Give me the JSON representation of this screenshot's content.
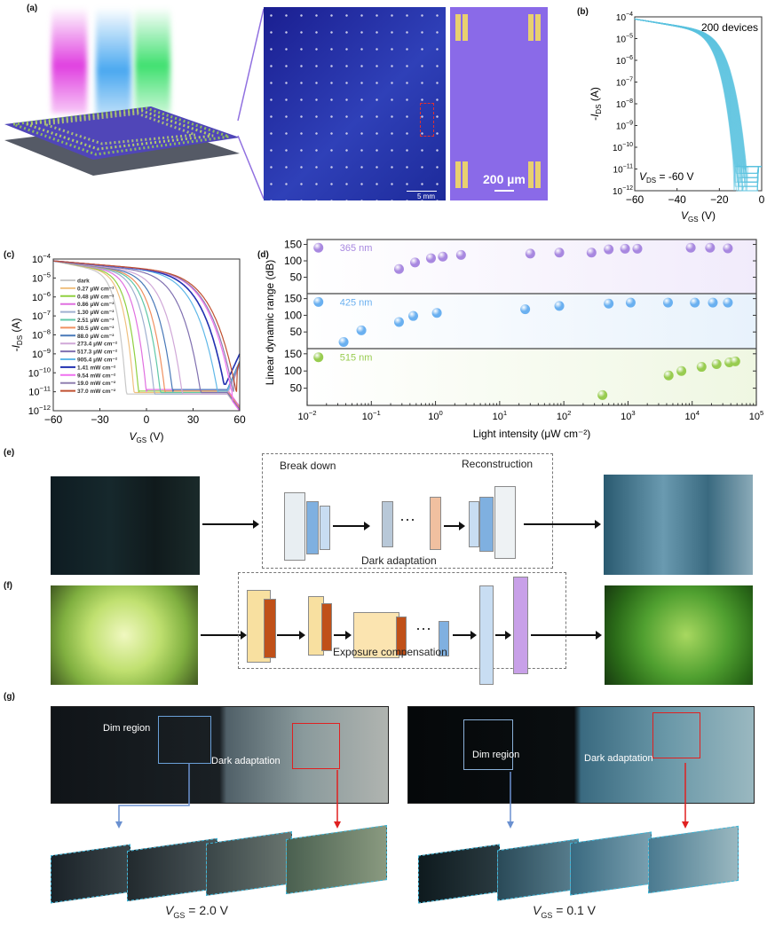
{
  "panels": {
    "a": {
      "label": "(a)",
      "scale_bar_wide": "5 mm",
      "scale_bar_zoom": "200 µm"
    },
    "b": {
      "label": "(b)"
    },
    "c": {
      "label": "(c)"
    },
    "d": {
      "label": "(d)"
    },
    "e": {
      "label": "(e)",
      "stage1": "Break down",
      "stage2": "Reconstruction",
      "stage3": "Dark adaptation",
      "ellipsis": "···"
    },
    "f": {
      "label": "(f)",
      "stage": "Exposure compensation",
      "ellipsis": "···"
    },
    "g": {
      "label": "(g)",
      "left": {
        "dim": "Dim region",
        "adapt": "Dark adaptation",
        "vgs_label": "V",
        "vgs_sub": "GS",
        "vgs_value": " = 2.0 V"
      },
      "right": {
        "dim": "Dim region",
        "adapt": "Dark adaptation",
        "vgs_label": "V",
        "vgs_sub": "GS",
        "vgs_value": " = 0.1 V"
      }
    }
  },
  "colors": {
    "beam1": "#e040e0",
    "beam2": "#4aa8f0",
    "beam3": "#40e070",
    "wafer": "#1f2a8a",
    "zoom": "#8a6ae8",
    "b_curve": "#5bc3e0"
  },
  "chart_data": [
    {
      "id": "b",
      "type": "line",
      "title": "",
      "annotation": "200 devices",
      "condition": {
        "label": "V",
        "sub": "DS",
        "value": " = -60 V"
      },
      "xlabel": {
        "main": "V",
        "sub": "GS",
        "unit": " (V)"
      },
      "ylabel": {
        "pre": "-",
        "main": "I",
        "sub": "DS",
        "unit": " (A)"
      },
      "xlim": [
        -60,
        0
      ],
      "ylim_log10": [
        -12,
        -4
      ],
      "xticks": [
        "-60",
        "-40",
        "-20",
        "0"
      ],
      "yticks_exp": [
        "-4",
        "-5",
        "-6",
        "-7",
        "-8",
        "-9",
        "-10",
        "-11",
        "-12"
      ],
      "device_count": 200,
      "turn_off_voltage_range": [
        -13,
        -7
      ],
      "on_current_at_-60V": 8e-05,
      "off_current_floor": 1.3e-11
    },
    {
      "id": "c",
      "type": "line",
      "xlabel": {
        "main": "V",
        "sub": "GS",
        "unit": " (V)"
      },
      "ylabel": {
        "pre": "-",
        "main": "I",
        "sub": "DS",
        "unit": " (A)"
      },
      "xlim": [
        -60,
        60
      ],
      "ylim_log10": [
        -12,
        -4
      ],
      "xticks": [
        "-60",
        "-30",
        "0",
        "30",
        "60"
      ],
      "yticks_exp": [
        "-4",
        "-5",
        "-6",
        "-7",
        "-8",
        "-9",
        "-10",
        "-11",
        "-12"
      ],
      "series": [
        {
          "name": "dark",
          "color": "#c8c8c8",
          "turn_off_V": -13
        },
        {
          "name": "0.27 μW cm⁻²",
          "color": "#f0c080",
          "turn_off_V": -8
        },
        {
          "name": "0.48 μW cm⁻²",
          "color": "#90d040",
          "turn_off_V": -5
        },
        {
          "name": "0.86 μW cm⁻²",
          "color": "#e070e0",
          "turn_off_V": 0
        },
        {
          "name": "1.30 μW cm⁻²",
          "color": "#a0b0d0",
          "turn_off_V": 5
        },
        {
          "name": "2.51 μW cm⁻²",
          "color": "#60c8a8",
          "turn_off_V": 9
        },
        {
          "name": "30.5 μW cm⁻²",
          "color": "#f09060",
          "turn_off_V": 12
        },
        {
          "name": "88.0 μW cm⁻²",
          "color": "#4878b8",
          "turn_off_V": 17
        },
        {
          "name": "273.4 μW cm⁻²",
          "color": "#d0a8d8",
          "turn_off_V": 23
        },
        {
          "name": "517.3 μW cm⁻²",
          "color": "#8070b0",
          "turn_off_V": 35
        },
        {
          "name": "905.4 μW cm⁻²",
          "color": "#60b8e8",
          "turn_off_V": 46
        },
        {
          "name": "1.41 mW cm⁻²",
          "color": "#2030b0",
          "turn_off_V": 51
        },
        {
          "name": "9.54 mW cm⁻²",
          "color": "#f070f0",
          "turn_off_V": 55
        },
        {
          "name": "19.0 mW cm⁻²",
          "color": "#9080b0",
          "turn_off_V": 56
        },
        {
          "name": "37.0 mW cm⁻²",
          "color": "#c05030",
          "turn_off_V": 58
        }
      ]
    },
    {
      "id": "d",
      "type": "scatter",
      "xlabel": "Light intensity (μW cm⁻²)",
      "ylabel": "Linear dynamic range (dB)",
      "xscale": "log",
      "xlim_log10": [
        -2,
        5
      ],
      "xticks_exp": [
        "-2",
        "-1",
        "0",
        "1",
        "2",
        "3",
        "4",
        "5"
      ],
      "yticks": [
        "50",
        "100",
        "150"
      ],
      "ylim": [
        0,
        165
      ],
      "series": [
        {
          "name": "365 nm",
          "color": "#a888e0",
          "band": "#f1ebfb",
          "x": [
            0.27,
            0.48,
            0.85,
            1.3,
            2.5,
            30,
            85,
            270,
            500,
            900,
            1400,
            9500,
            19000,
            36000
          ],
          "y": [
            75,
            95,
            108,
            113,
            118,
            122,
            125,
            125,
            135,
            137,
            137,
            140,
            140,
            138
          ]
        },
        {
          "name": "425 nm",
          "color": "#6ab0f0",
          "band": "#e8f2fc",
          "x": [
            0.037,
            0.07,
            0.27,
            0.45,
            1.05,
            25,
            85,
            500,
            1100,
            4200,
            11000,
            21000,
            36000
          ],
          "y": [
            20,
            55,
            80,
            98,
            107,
            118,
            128,
            135,
            138,
            138,
            138,
            138,
            138
          ]
        },
        {
          "name": "515 nm",
          "color": "#98cc50",
          "band": "#eff7e2",
          "x": [
            400,
            4300,
            6800,
            14000,
            24000,
            38000,
            47000
          ],
          "y": [
            30,
            87,
            100,
            112,
            120,
            125,
            128
          ]
        }
      ]
    }
  ]
}
